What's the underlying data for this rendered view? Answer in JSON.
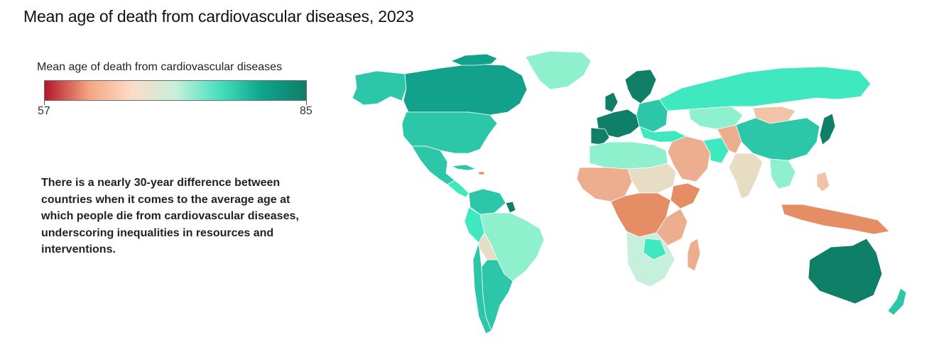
{
  "title": "Mean age of death from cardiovascular diseases, 2023",
  "legend": {
    "title": "Mean age of death from cardiovascular diseases",
    "min_label": "57",
    "max_label": "85",
    "min": 57,
    "max": 85,
    "gradient_stops": [
      "#b2182b",
      "#f4a582",
      "#fddbc7",
      "#c7f0dc",
      "#46e0bd",
      "#0da58d",
      "#0f7f68"
    ]
  },
  "annotation": "There is a nearly 30-year difference between countries when it comes to the average age at which people die from cardiovascular diseases, underscoring inequalities in resources and interventions.",
  "colors": {
    "dark_green": "#0f7f68",
    "mid_green": "#2cc6a8",
    "bright_green": "#40e8c0",
    "light_green": "#8ef0cd",
    "pale": "#e6ddc4",
    "peach": "#f3c3a8",
    "salmon": "#ecae8e",
    "orange": "#e58d65"
  }
}
